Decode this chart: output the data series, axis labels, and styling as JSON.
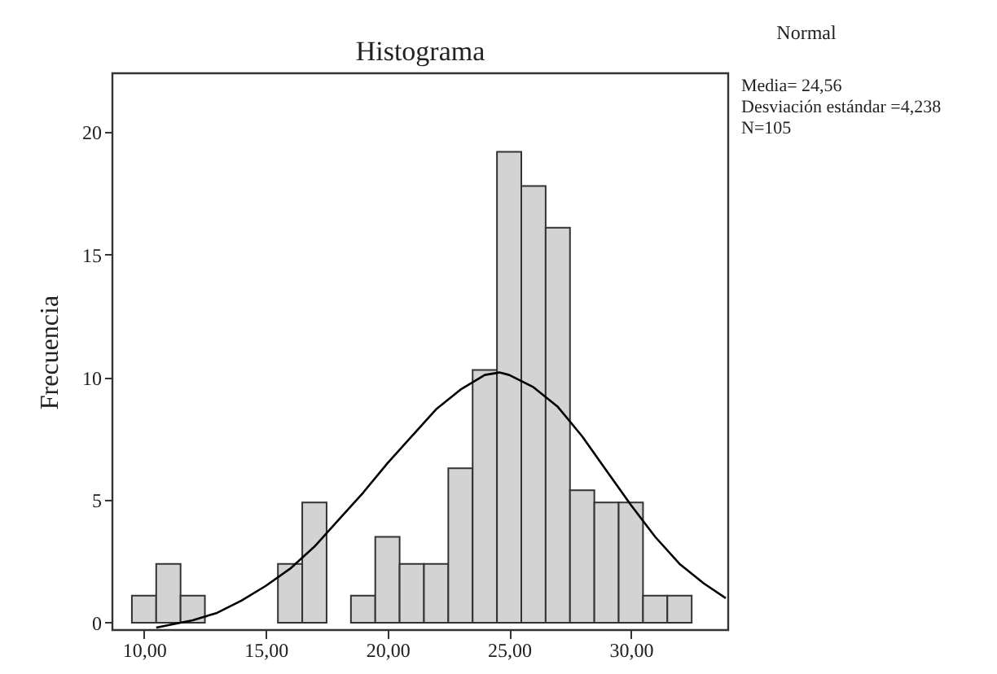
{
  "chart_data": {
    "type": "histogram",
    "title": "Histograma",
    "ylabel": "Frecuencia",
    "bins": [
      9.5,
      10.5,
      11.5,
      12.5,
      13.5,
      14.5,
      15.5,
      16.5,
      17.5,
      18.5,
      19.5,
      20.5,
      21.5,
      22.5,
      23.5,
      24.5,
      25.5,
      26.5,
      27.5,
      28.5,
      29.5,
      30.5,
      31.5,
      32.5
    ],
    "values": [
      1.1,
      2.4,
      1.1,
      0,
      0,
      0,
      2.4,
      4.9,
      0,
      1.1,
      3.5,
      2.4,
      2.4,
      6.3,
      10.3,
      19.2,
      17.8,
      16.1,
      5.4,
      4.9,
      4.9,
      1.1,
      1.1
    ],
    "color": "#d3d3d3",
    "series": [
      {
        "type": "line",
        "color": "#000000",
        "x": [
          10.5,
          12,
          13,
          14,
          15,
          16,
          17,
          18,
          19,
          20,
          21,
          22,
          23,
          24,
          24.6,
          25,
          26,
          27,
          28,
          29,
          30,
          31,
          32,
          33,
          33.9
        ],
        "values": [
          -0.2,
          0.1,
          0.4,
          0.9,
          1.5,
          2.2,
          3.1,
          4.2,
          5.3,
          6.5,
          7.6,
          8.7,
          9.5,
          10.1,
          10.2,
          10.1,
          9.6,
          8.8,
          7.6,
          6.2,
          4.8,
          3.5,
          2.4,
          1.6,
          1.0
        ]
      }
    ],
    "xlim": [
      8.7,
      34
    ],
    "xticks": [
      {
        "value": 10,
        "label": "10,00"
      },
      {
        "value": 15,
        "label": "15,00"
      },
      {
        "value": 20,
        "label": "20,00"
      },
      {
        "value": 25,
        "label": "25,00"
      },
      {
        "value": 30,
        "label": "30,00"
      }
    ],
    "ylim": [
      -0.3,
      22.4
    ],
    "yticks": [
      0,
      5,
      10,
      15,
      20
    ],
    "grid": false,
    "annotations": [
      "Normal",
      "Media= 24,56",
      "Desviación estándar =4,238",
      "N=105"
    ]
  }
}
